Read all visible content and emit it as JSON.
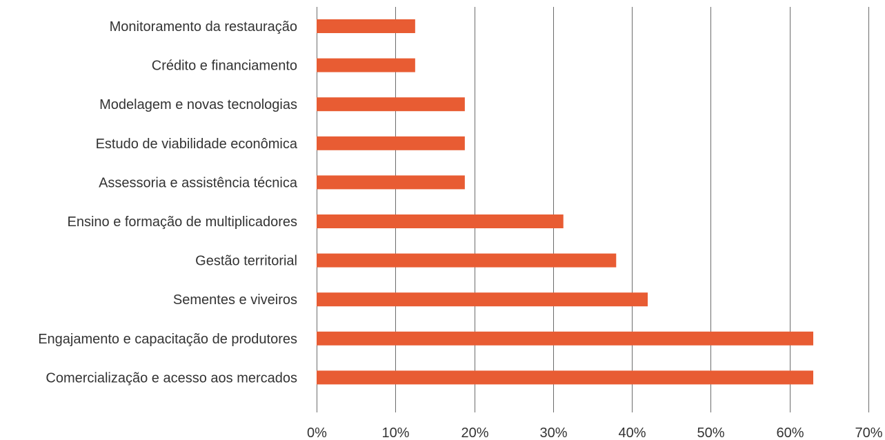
{
  "chart_data": {
    "type": "bar",
    "orientation": "horizontal",
    "categories": [
      "Monitoramento da restauração",
      "Crédito e financiamento",
      "Modelagem e novas tecnologias",
      "Estudo de viabilidade econômica",
      "Assessoria e assistência técnica",
      "Ensino e formação de multiplicadores",
      "Gestão territorial",
      "Sementes e viveiros",
      "Engajamento e capacitação de produtores",
      "Comercialização e acesso aos mercados"
    ],
    "values": [
      12.5,
      12.5,
      18.8,
      18.8,
      18.8,
      31.3,
      38.0,
      42.0,
      63.0,
      63.0
    ],
    "xlim": [
      0,
      70
    ],
    "x_ticks": [
      "0%",
      "10%",
      "20%",
      "30%",
      "40%",
      "50%",
      "60%",
      "70%"
    ],
    "grid": true,
    "bar_color": "#e85c33",
    "grid_color": "#6b6b6b",
    "title": "",
    "xlabel": "",
    "ylabel": ""
  }
}
